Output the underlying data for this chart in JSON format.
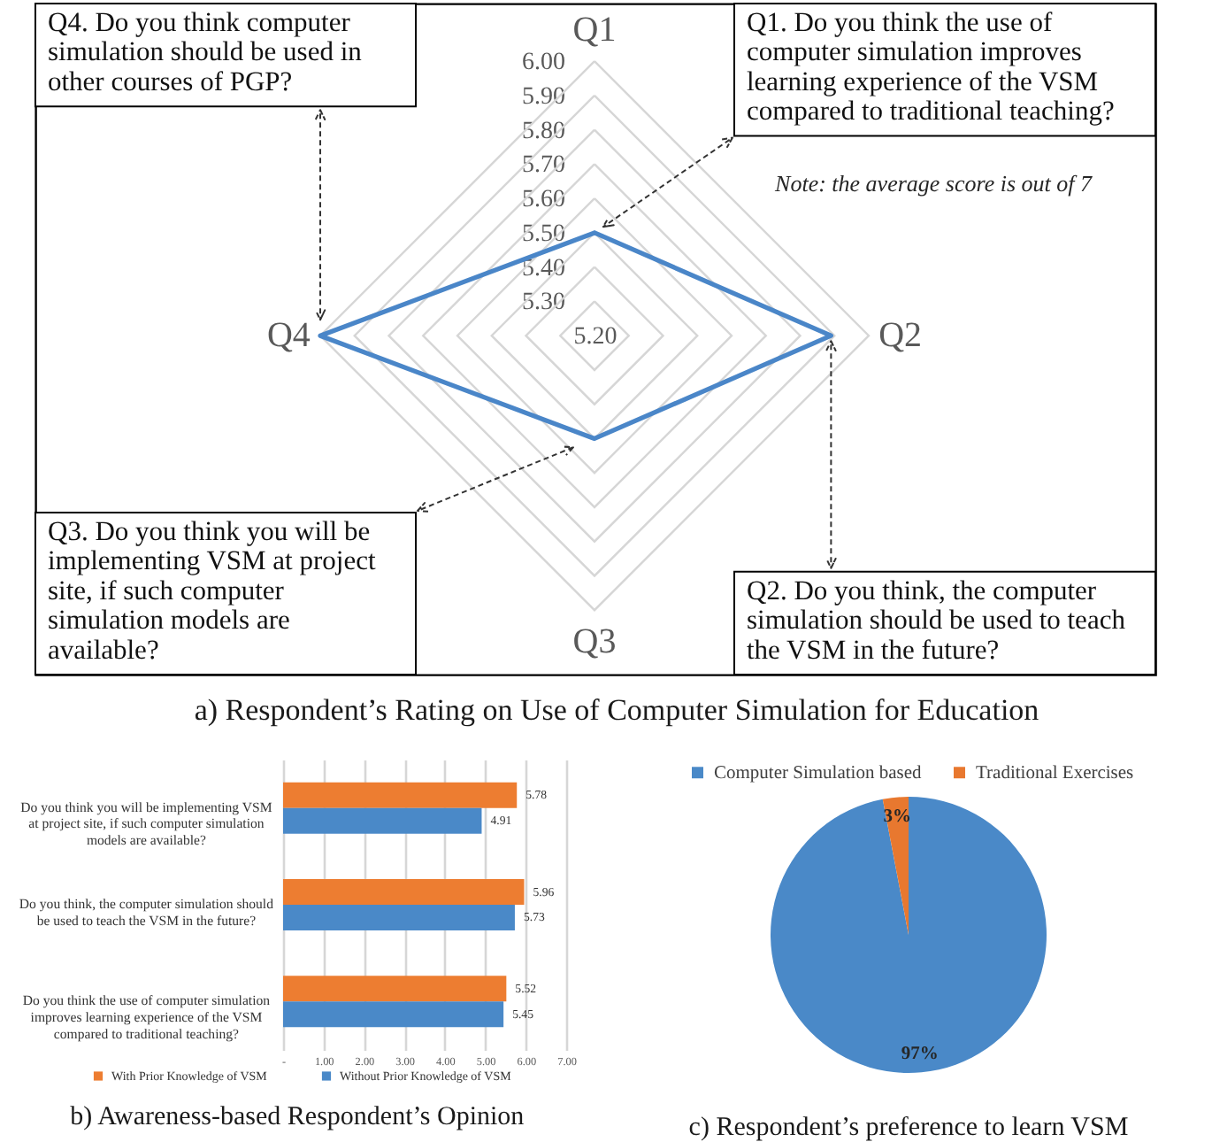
{
  "chart_data": [
    {
      "type": "radar",
      "title": "a) Respondent’s Rating on Use of Computer Simulation for Education",
      "categories": [
        "Q1",
        "Q2",
        "Q3",
        "Q4"
      ],
      "series": [
        {
          "color": "#4a86c8",
          "values": [
            5.5,
            5.89,
            5.5,
            6.0
          ]
        }
      ],
      "ylim": [
        5.2,
        6.0
      ],
      "yticks": [
        {
          "value": 5.2,
          "label": "5.20"
        },
        {
          "value": 5.3,
          "label": "5.30"
        },
        {
          "value": 5.4,
          "label": "5.40"
        },
        {
          "value": 5.5,
          "label": "5.50"
        },
        {
          "value": 5.6,
          "label": "5.60"
        },
        {
          "value": 5.7,
          "label": "5.70"
        },
        {
          "value": 5.8,
          "label": "5.80"
        },
        {
          "value": 5.9,
          "label": "5.90"
        },
        {
          "value": 6.0,
          "label": "6.00"
        }
      ],
      "grid": true,
      "annotations": [
        {
          "text": "Q4. Do you think computer simulation should be used in other courses of PGP?",
          "x": "Q4"
        },
        {
          "text": "Q1. Do you think the use of computer simulation improves learning experience of the VSM compared to traditional teaching?",
          "x": "Q1"
        },
        "Note: the average score is out of 7",
        {
          "text": "Q3. Do you think you will be implementing VSM at project site, if such computer simulation models are available?",
          "x": "Q3"
        },
        {
          "text": "Q2. Do you think, the computer simulation should be used to teach the VSM in the future?",
          "x": "Q2"
        }
      ]
    },
    {
      "type": "bar",
      "orientation": "horizontal",
      "title": "b) Awareness-based Respondent’s Opinion",
      "categories": [
        "Do you think you will be implementing VSM at project site, if such computer simulation models are available?",
        "Do you think, the computer simulation should be used to teach the VSM in the future?",
        "Do you think the use of computer simulation improves learning experience of the VSM compared to traditional teaching?"
      ],
      "series": [
        {
          "name": "With Prior Knowledge of VSM",
          "color": "#ed7d31",
          "values": [
            5.78,
            5.96,
            5.52
          ]
        },
        {
          "name": "Without Prior Knowledge of VSM",
          "color": "#4a89c8",
          "values": [
            4.91,
            5.73,
            5.45
          ]
        }
      ],
      "xlim": [
        0,
        7
      ],
      "xticks": [
        {
          "value": 0,
          "label": "-"
        },
        {
          "value": 1,
          "label": "1.00"
        },
        {
          "value": 2,
          "label": "2.00"
        },
        {
          "value": 3,
          "label": "3.00"
        },
        {
          "value": 4,
          "label": "4.00"
        },
        {
          "value": 5,
          "label": "5.00"
        },
        {
          "value": 6,
          "label": "6.00"
        },
        {
          "value": 7,
          "label": "7.00"
        }
      ],
      "grid": "x",
      "legend": "bottom",
      "data_labels": true
    },
    {
      "type": "pie",
      "title": "c) Respondent’s preference to learn VSM",
      "categories": [
        "Computer Simulation based",
        "Traditional Exercises"
      ],
      "values": [
        97,
        3
      ],
      "colors": [
        "#4a89c8",
        "#e8782f"
      ],
      "value_labels": [
        "97%",
        "3%"
      ],
      "legend": "top"
    }
  ]
}
